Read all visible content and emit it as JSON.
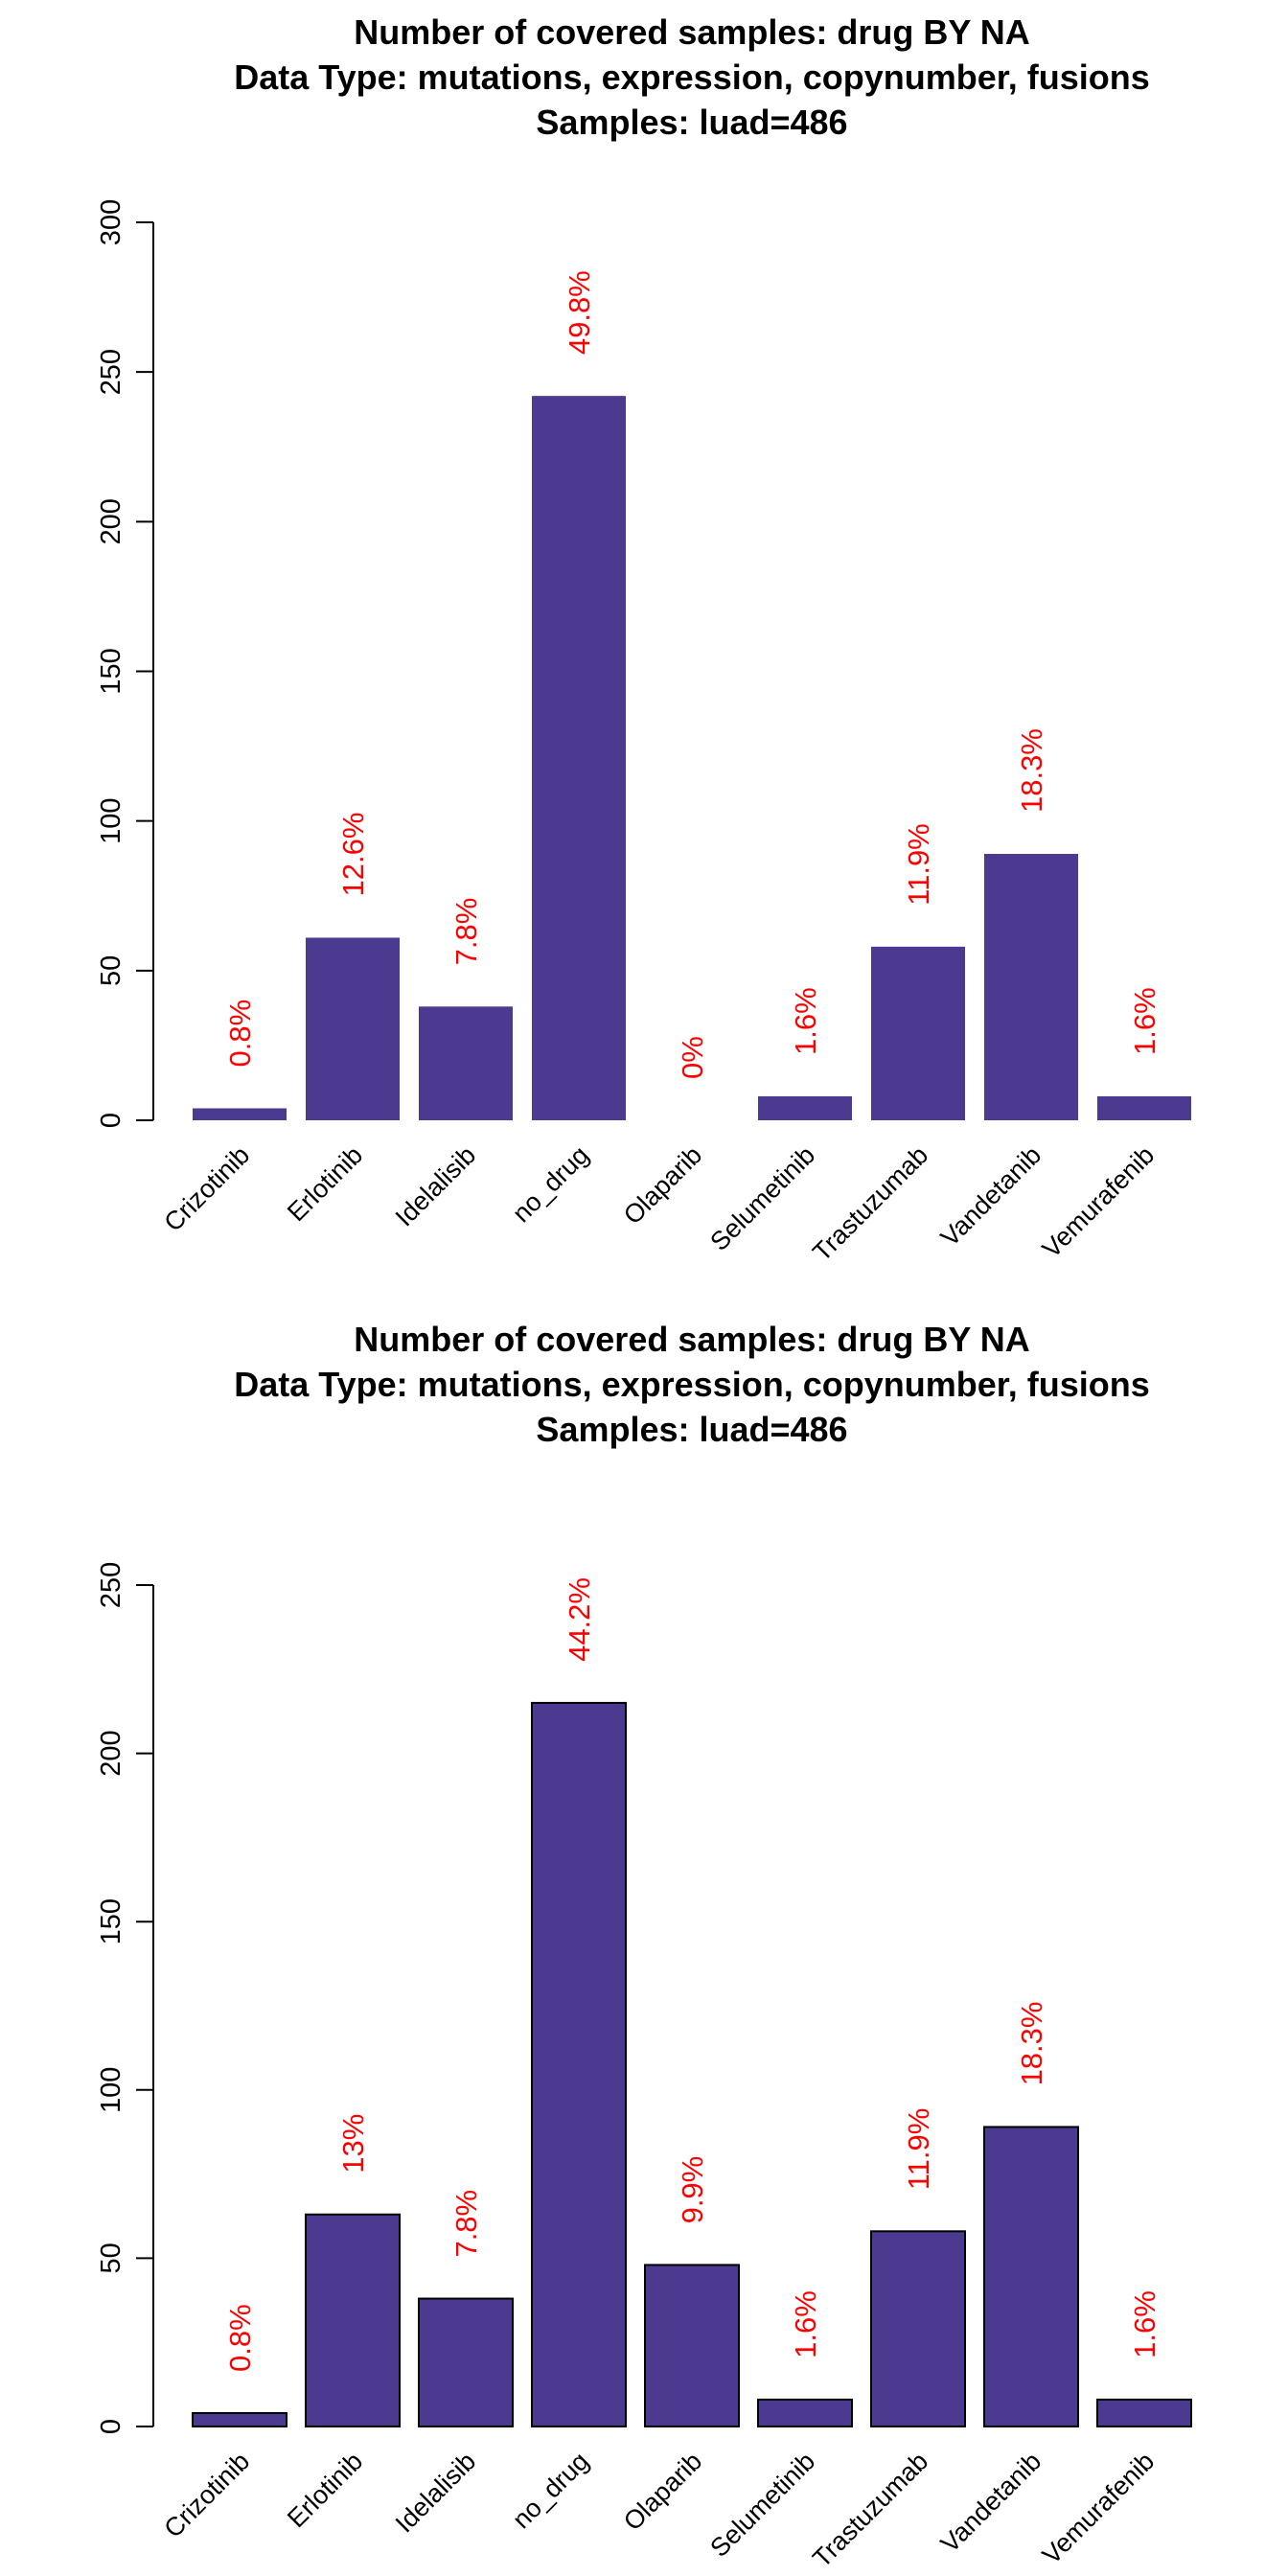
{
  "colors": {
    "bar": "#4b3a8f",
    "label": "#ff0000",
    "axis": "#000000"
  },
  "chart_data": [
    {
      "type": "bar",
      "title": [
        "Number of covered samples: drug BY NA",
        "Data Type: mutations, expression, copynumber, fusions",
        "Samples: luad=486"
      ],
      "categories": [
        "Crizotinib",
        "Erlotinib",
        "Idelalisib",
        "no_drug",
        "Olaparib",
        "Selumetinib",
        "Trastuzumab",
        "Vandetanib",
        "Vemurafenib"
      ],
      "values": [
        4,
        61,
        38,
        242,
        0,
        8,
        58,
        89,
        8
      ],
      "labels": [
        "0.8%",
        "12.6%",
        "7.8%",
        "49.8%",
        "0%",
        "1.6%",
        "11.9%",
        "18.3%",
        "1.6%"
      ],
      "yticks": [
        "0",
        "50",
        "100",
        "150",
        "200",
        "250",
        "300"
      ],
      "ylim": [
        0,
        300
      ],
      "bar_border": false
    },
    {
      "type": "bar",
      "title": [
        "Number of covered samples: drug BY NA",
        "Data Type: mutations, expression, copynumber, fusions",
        "Samples: luad=486"
      ],
      "categories": [
        "Crizotinib",
        "Erlotinib",
        "Idelalisib",
        "no_drug",
        "Olaparib",
        "Selumetinib",
        "Trastuzumab",
        "Vandetanib",
        "Vemurafenib"
      ],
      "values": [
        4,
        63,
        38,
        215,
        48,
        8,
        58,
        89,
        8
      ],
      "labels": [
        "0.8%",
        "13%",
        "7.8%",
        "44.2%",
        "9.9%",
        "1.6%",
        "11.9%",
        "18.3%",
        "1.6%"
      ],
      "yticks": [
        "0",
        "50",
        "100",
        "150",
        "200",
        "250"
      ],
      "ylim": [
        0,
        250
      ],
      "bar_border": true
    }
  ]
}
